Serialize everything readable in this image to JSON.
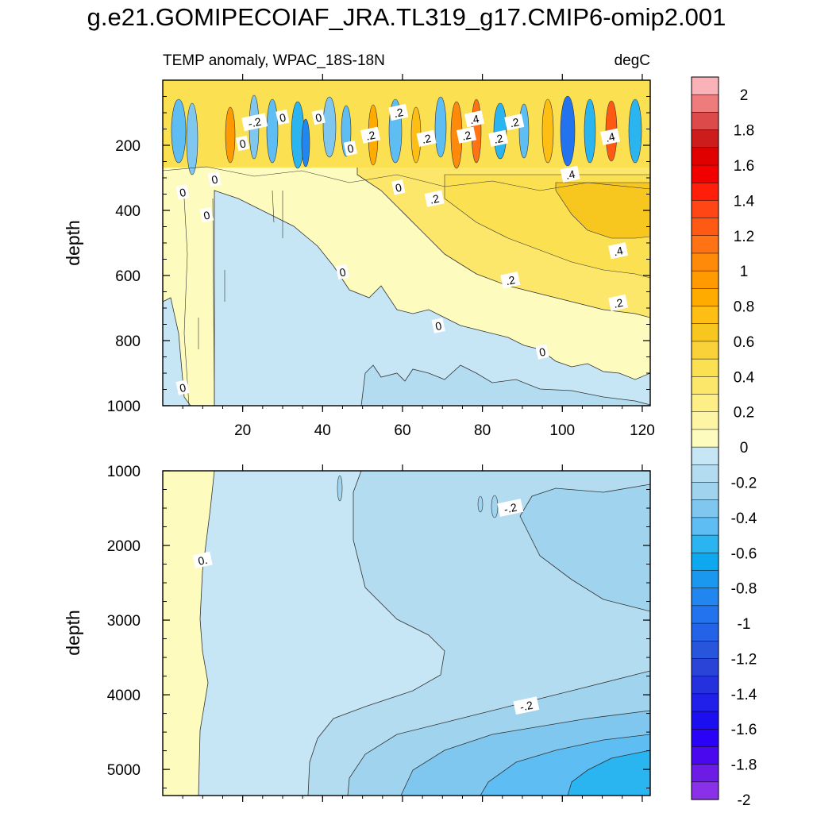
{
  "title": "g.e21.GOMIPECOIAF_JRA.TL319_g17.CMIP6-omip2.001",
  "colors": {
    "bg": "#ffffff",
    "axis": "#000000",
    "contour_line": "#333333"
  },
  "chart_data": [
    {
      "type": "heatmap",
      "panel": "upper",
      "left_label": "TEMP anomaly, WPAC_18S-18N",
      "right_label": "degC",
      "xlabel": "",
      "ylabel": "depth",
      "xlim": [
        0,
        122
      ],
      "ylim": [
        1000,
        0
      ],
      "xticks": [
        20,
        40,
        60,
        80,
        100,
        120
      ],
      "yticks": [
        200,
        400,
        600,
        800,
        1000
      ],
      "contour_labels": [
        {
          "text": "-.2",
          "x": 23,
          "y": 130
        },
        {
          "text": "0",
          "x": 30,
          "y": 115
        },
        {
          "text": "0",
          "x": 39,
          "y": 115
        },
        {
          "text": ".2",
          "x": 59,
          "y": 100
        },
        {
          "text": ".2",
          "x": 52,
          "y": 170
        },
        {
          "text": ".4",
          "x": 78,
          "y": 120
        },
        {
          "text": ".2",
          "x": 88,
          "y": 130
        },
        {
          "text": ".2",
          "x": 66,
          "y": 180
        },
        {
          "text": ".2",
          "x": 76,
          "y": 170
        },
        {
          "text": ".2",
          "x": 84,
          "y": 180
        },
        {
          "text": ".4",
          "x": 112,
          "y": 175
        },
        {
          "text": "0",
          "x": 20,
          "y": 195
        },
        {
          "text": "0",
          "x": 47,
          "y": 210
        },
        {
          "text": ".4",
          "x": 102,
          "y": 290
        },
        {
          "text": "0",
          "x": 13,
          "y": 305
        },
        {
          "text": "0",
          "x": 5,
          "y": 345
        },
        {
          "text": "0",
          "x": 11,
          "y": 415
        },
        {
          "text": "0",
          "x": 59,
          "y": 330
        },
        {
          "text": ".2",
          "x": 68,
          "y": 365
        },
        {
          "text": ".4",
          "x": 114,
          "y": 525
        },
        {
          "text": "0",
          "x": 45,
          "y": 590
        },
        {
          "text": ".2",
          "x": 87,
          "y": 615
        },
        {
          "text": ".2",
          "x": 114,
          "y": 685
        },
        {
          "text": "0",
          "x": 69,
          "y": 755
        },
        {
          "text": "0",
          "x": 95,
          "y": 835
        },
        {
          "text": "0",
          "x": 5,
          "y": 945
        }
      ]
    },
    {
      "type": "heatmap",
      "panel": "lower",
      "xlabel": "",
      "ylabel": "depth",
      "xlim": [
        0,
        122
      ],
      "ylim": [
        5350,
        1000
      ],
      "yticks": [
        1000,
        2000,
        3000,
        4000,
        5000
      ],
      "contour_labels": [
        {
          "text": "-.2",
          "x": 87,
          "y": 1500
        },
        {
          "text": "-.2",
          "x": 91,
          "y": 4150
        },
        {
          "text": "0.",
          "x": 10,
          "y": 2200
        }
      ]
    }
  ],
  "colorbar": {
    "labels": [
      "2",
      "1.8",
      "1.6",
      "1.4",
      "1.2",
      "1",
      "0.8",
      "0.6",
      "0.4",
      "0.2",
      "0",
      "-0.2",
      "-0.4",
      "-0.6",
      "-0.8",
      "-1",
      "-1.2",
      "-1.4",
      "-1.6",
      "-1.8",
      "-2"
    ],
    "colors": [
      "#f9b3b8",
      "#ef7c7c",
      "#dc4a4a",
      "#cc1c1c",
      "#e00000",
      "#f20000",
      "#ff1e0a",
      "#ff4614",
      "#ff5a14",
      "#ff7314",
      "#ff8a0a",
      "#ff9b00",
      "#ffab00",
      "#ffbe14",
      "#f7c61f",
      "#f9d23a",
      "#fbe052",
      "#fce76a",
      "#fdef86",
      "#fdf5a4",
      "#fdfbbd",
      "#c6e6f5",
      "#b4dcf0",
      "#9fd3ee",
      "#7fc7ef",
      "#5ebdf3",
      "#2ab5f0",
      "#0ea8ee",
      "#1a98ef",
      "#2286f0",
      "#2473ee",
      "#2462e8",
      "#2756dc",
      "#2a44d8",
      "#2631de",
      "#2020ea",
      "#1b0ff2",
      "#2a02f5",
      "#4a08ef",
      "#6c1ce4",
      "#8a30e8"
    ]
  }
}
